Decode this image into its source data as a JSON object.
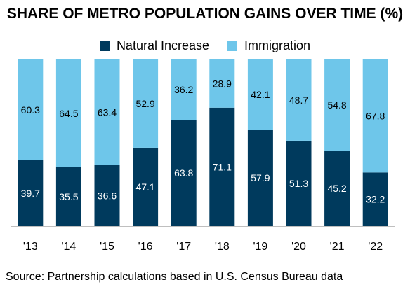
{
  "chart_data": {
    "type": "bar",
    "stacked": true,
    "title": "SHARE OF METRO POPULATION GAINS OVER TIME (%)",
    "categories": [
      "'13",
      "'14",
      "'15",
      "'16",
      "'17",
      "'18",
      "'19",
      "'20",
      "'21",
      "'22"
    ],
    "series": [
      {
        "name": "Natural Increase",
        "color": "#003a5d",
        "values": [
          39.7,
          35.5,
          36.6,
          47.1,
          63.8,
          71.1,
          57.9,
          51.3,
          45.2,
          32.2
        ]
      },
      {
        "name": "Immigration",
        "color": "#6ec6ea",
        "values": [
          60.3,
          64.5,
          63.4,
          52.9,
          36.2,
          28.9,
          42.1,
          48.7,
          54.8,
          67.8
        ]
      }
    ],
    "ylim": [
      0,
      100
    ],
    "grid": false,
    "legend_position": "top-center",
    "data_labels": true,
    "source": "Source: Partnership calculations based in U.S. Census Bureau data"
  }
}
